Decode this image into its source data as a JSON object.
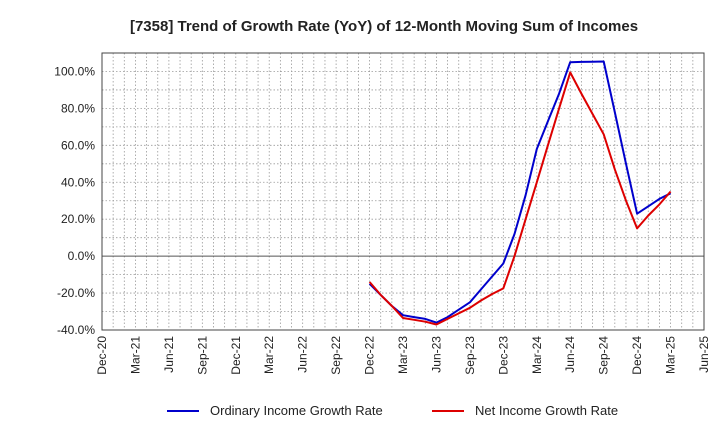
{
  "chart_data": {
    "type": "line",
    "title": "[7358]  Trend of Growth Rate (YoY) of 12-Month Moving Sum of Incomes",
    "xlabel": "",
    "ylabel": "",
    "x_ticks": [
      "Dec-20",
      "Mar-21",
      "Jun-21",
      "Sep-21",
      "Dec-21",
      "Mar-22",
      "Jun-22",
      "Sep-22",
      "Dec-22",
      "Mar-23",
      "Jun-23",
      "Sep-23",
      "Dec-23",
      "Mar-24",
      "Jun-24",
      "Sep-24",
      "Dec-24",
      "Mar-25",
      "Jun-25"
    ],
    "ylim": [
      -40,
      110
    ],
    "y_ticks": [
      -40,
      -20,
      0,
      20,
      40,
      60,
      80,
      100
    ],
    "y_tick_labels": [
      "-40.0%",
      "-20.0%",
      "0.0%",
      "20.0%",
      "40.0%",
      "60.0%",
      "80.0%",
      "100.0%"
    ],
    "grid": true,
    "legend": "bottom",
    "series": [
      {
        "name": "Ordinary Income Growth Rate",
        "color": "#0000cc",
        "x": [
          "Dec-22",
          "Jan-23",
          "Feb-23",
          "Mar-23",
          "Apr-23",
          "May-23",
          "Jun-23",
          "Jul-23",
          "Aug-23",
          "Sep-23",
          "Oct-23",
          "Nov-23",
          "Dec-23",
          "Jan-24",
          "Feb-24",
          "Mar-24",
          "Apr-24",
          "May-24",
          "Jun-24",
          "Jul-24",
          "Aug-24",
          "Sep-24",
          "Oct-24",
          "Nov-24",
          "Dec-24",
          "Jan-25",
          "Feb-25",
          "Mar-25"
        ],
        "values": [
          -15,
          -21,
          -27,
          -32,
          -33,
          -34,
          -36,
          -33,
          -29,
          -25,
          -18,
          -11,
          -4,
          12,
          33,
          58,
          73,
          88,
          105,
          105.2,
          105.3,
          105.4,
          78,
          50,
          23,
          27,
          31,
          34
        ]
      },
      {
        "name": "Net Income Growth Rate",
        "color": "#dd0000",
        "x": [
          "Dec-22",
          "Jan-23",
          "Feb-23",
          "Mar-23",
          "Apr-23",
          "May-23",
          "Jun-23",
          "Jul-23",
          "Aug-23",
          "Sep-23",
          "Oct-23",
          "Nov-23",
          "Dec-23",
          "Jan-24",
          "Feb-24",
          "Mar-24",
          "Apr-24",
          "May-24",
          "Jun-24",
          "Jul-24",
          "Aug-24",
          "Sep-24",
          "Oct-24",
          "Nov-24",
          "Dec-24",
          "Jan-25",
          "Feb-25",
          "Mar-25"
        ],
        "values": [
          -14,
          -21,
          -27,
          -33.5,
          -34.5,
          -35.5,
          -37,
          -34,
          -31,
          -28,
          -24,
          -20.5,
          -17.5,
          0,
          20,
          40,
          60,
          80,
          99.5,
          88,
          77,
          66,
          47,
          30,
          15,
          22,
          28,
          35
        ]
      }
    ]
  }
}
